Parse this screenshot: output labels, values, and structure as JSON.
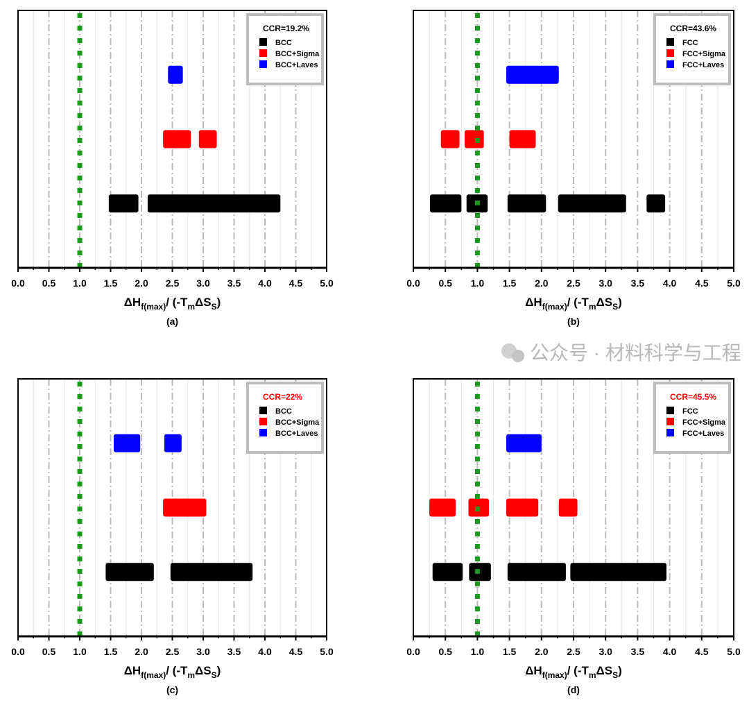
{
  "colors": {
    "base": "#000000",
    "sigma": "#ff0000",
    "laves": "#0000ff",
    "reference_line": "#1a9a1a",
    "legend_border": "#bdbdbd",
    "grid": "#bbbbbb"
  },
  "watermark": "公众号 · 材料科学与工程",
  "chart_data": [
    {
      "type": "range-bar",
      "panel_label": "(a)",
      "ccr": "CCR=19.2%",
      "ccr_color": "#000000",
      "xlabel": {
        "main": "ΔH",
        "sub": "f(max)",
        "mid": "/ (-T",
        "sub2": "m",
        "mid2": "ΔS",
        "sub3": "S",
        "end": ")"
      },
      "xlim": [
        0,
        5
      ],
      "xticks": [
        "0.0",
        "0.5",
        "1.0",
        "1.5",
        "2.0",
        "2.5",
        "3.0",
        "3.5",
        "4.0",
        "4.5",
        "5.0"
      ],
      "reference_x": 1.0,
      "grid": true,
      "series": [
        {
          "name": "BCC",
          "color": "#000000",
          "ranges": [
            [
              1.47,
              1.95
            ],
            [
              2.1,
              4.25
            ]
          ]
        },
        {
          "name": "BCC+Sigma",
          "color": "#ff0000",
          "ranges": [
            [
              2.35,
              2.8
            ],
            [
              2.93,
              3.22
            ]
          ]
        },
        {
          "name": "BCC+Laves",
          "color": "#0000ff",
          "ranges": [
            [
              2.43,
              2.67
            ]
          ]
        }
      ]
    },
    {
      "type": "range-bar",
      "panel_label": "(b)",
      "ccr": "CCR=43.6%",
      "ccr_color": "#000000",
      "xlabel": {
        "main": "ΔH",
        "sub": "f(max)",
        "mid": "/ (-T",
        "sub2": "m",
        "mid2": "ΔS",
        "sub3": "S",
        "end": ")"
      },
      "xlim": [
        0,
        5
      ],
      "xticks": [
        "0.0",
        "0.5",
        "1.0",
        "1.5",
        "2.0",
        "2.5",
        "3.0",
        "3.5",
        "4.0",
        "4.5",
        "5.0"
      ],
      "reference_x": 1.0,
      "grid": true,
      "series": [
        {
          "name": "FCC",
          "color": "#000000",
          "ranges": [
            [
              0.26,
              0.75
            ],
            [
              0.83,
              1.16
            ],
            [
              1.47,
              2.07
            ],
            [
              2.26,
              3.32
            ],
            [
              3.64,
              3.93
            ]
          ]
        },
        {
          "name": "FCC+Sigma",
          "color": "#ff0000",
          "ranges": [
            [
              0.43,
              0.72
            ],
            [
              0.8,
              1.1
            ],
            [
              1.5,
              1.91
            ]
          ]
        },
        {
          "name": "FCC+Laves",
          "color": "#0000ff",
          "ranges": [
            [
              1.45,
              2.27
            ]
          ]
        }
      ]
    },
    {
      "type": "range-bar",
      "panel_label": "(c)",
      "ccr": "CCR=22%",
      "ccr_color": "#ff0000",
      "xlabel": {
        "main": "ΔH",
        "sub": "f(max)",
        "mid": "/ (-T",
        "sub2": "m",
        "mid2": "ΔS",
        "sub3": "S",
        "end": ")"
      },
      "xlim": [
        0,
        5
      ],
      "xticks": [
        "0.0",
        "0.5",
        "1.0",
        "1.5",
        "2.0",
        "2.5",
        "3.0",
        "3.5",
        "4.0",
        "4.5",
        "5.0"
      ],
      "reference_x": 1.0,
      "grid": true,
      "series": [
        {
          "name": "BCC",
          "color": "#000000",
          "ranges": [
            [
              1.42,
              2.2
            ],
            [
              2.47,
              3.8
            ]
          ]
        },
        {
          "name": "BCC+Sigma",
          "color": "#ff0000",
          "ranges": [
            [
              2.35,
              3.05
            ]
          ]
        },
        {
          "name": "BCC+Laves",
          "color": "#0000ff",
          "ranges": [
            [
              1.55,
              1.98
            ],
            [
              2.37,
              2.65
            ]
          ]
        }
      ]
    },
    {
      "type": "range-bar",
      "panel_label": "(d)",
      "ccr": "CCR=45.5%",
      "ccr_color": "#ff0000",
      "xlabel": {
        "main": "ΔH",
        "sub": "f(max)",
        "mid": "/ (-T",
        "sub2": "m",
        "mid2": "ΔS",
        "sub3": "S",
        "end": ")"
      },
      "xlim": [
        0,
        5
      ],
      "xticks": [
        "0.0",
        "0.5",
        "1.0",
        "1.5",
        "2.0",
        "2.5",
        "3.0",
        "3.5",
        "4.0",
        "4.5",
        "5.0"
      ],
      "reference_x": 1.0,
      "grid": true,
      "series": [
        {
          "name": "FCC",
          "color": "#000000",
          "ranges": [
            [
              0.3,
              0.77
            ],
            [
              0.87,
              1.21
            ],
            [
              1.47,
              2.38
            ],
            [
              2.45,
              3.95
            ]
          ]
        },
        {
          "name": "FCC+Sigma",
          "color": "#ff0000",
          "ranges": [
            [
              0.25,
              0.66
            ],
            [
              0.86,
              1.18
            ],
            [
              1.45,
              1.95
            ],
            [
              2.27,
              2.56
            ]
          ]
        },
        {
          "name": "FCC+Laves",
          "color": "#0000ff",
          "ranges": [
            [
              1.45,
              2.0
            ]
          ]
        }
      ]
    }
  ]
}
